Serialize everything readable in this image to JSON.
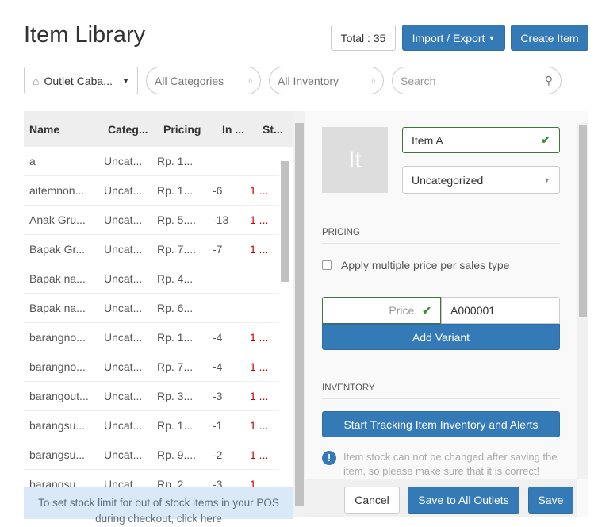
{
  "header": {
    "title": "Item Library",
    "total": "Total : 35",
    "import_export": "Import / Export",
    "create_item": "Create Item"
  },
  "filters": {
    "outlet": "Outlet Caba...",
    "categories": "All Categories",
    "inventory": "All Inventory",
    "search_placeholder": "Search"
  },
  "table": {
    "columns": [
      "Name",
      "Categ...",
      "Pricing",
      "In ...",
      "St..."
    ],
    "rows": [
      [
        "a",
        "Uncat...",
        "Rp. 1...",
        "",
        ""
      ],
      [
        "aitemnon...",
        "Uncat...",
        "Rp. 1...",
        "-6",
        "1 ..."
      ],
      [
        "Anak Gru...",
        "Uncat...",
        "Rp. 5....",
        "-13",
        "1 ..."
      ],
      [
        "Bapak Gr...",
        "Uncat...",
        "Rp. 7....",
        "-7",
        "1 ..."
      ],
      [
        "Bapak na...",
        "Uncat...",
        "Rp. 4...",
        "",
        ""
      ],
      [
        "Bapak na...",
        "Uncat...",
        "Rp. 6...",
        "",
        ""
      ],
      [
        "barangno...",
        "Uncat...",
        "Rp. 1...",
        "-4",
        "1 ..."
      ],
      [
        "barangno...",
        "Uncat...",
        "Rp. 7...",
        "-4",
        "1 ..."
      ],
      [
        "barangout...",
        "Uncat...",
        "Rp. 3...",
        "-3",
        "1 ..."
      ],
      [
        "barangsu...",
        "Uncat...",
        "Rp. 1...",
        "-1",
        "1 ..."
      ],
      [
        "barangsu...",
        "Uncat...",
        "Rp. 9....",
        "-2",
        "1 ..."
      ],
      [
        "barangsu...",
        "Uncat...",
        "Rp. 2...",
        "-3",
        "1 ..."
      ]
    ]
  },
  "banner": "To set stock limit for out of stock items in your POS during checkout, click here",
  "form": {
    "thumbnail": "It",
    "name": "Item A",
    "category": "Uncategorized",
    "pricing_label": "PRICING",
    "multi_price": "Apply multiple price per sales type",
    "price_placeholder": "Price",
    "sku": "A000001",
    "add_variant": "Add Variant",
    "inventory_label": "INVENTORY",
    "track": "Start Tracking Item Inventory and Alerts",
    "notice": "Item stock can not be changed after saving the item, so please make sure that it is correct!"
  },
  "footer": {
    "cancel": "Cancel",
    "save_all": "Save to All Outlets",
    "save": "Save"
  },
  "colors": {
    "primary": "#337ab7",
    "success": "#3c8c3c",
    "stock_alert": "#cc0000"
  }
}
